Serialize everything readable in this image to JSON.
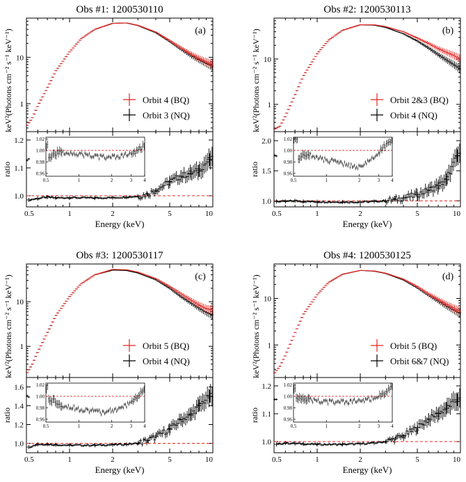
{
  "figure": {
    "energy_label": "Energy (keV)",
    "ratio_label": "ratio",
    "spectrum_label": "keV²(Photons cm⁻² s⁻¹ keV⁻¹)"
  },
  "colors": {
    "bq": "#e8231f",
    "nq": "#000000",
    "unity_line": "#e8231f"
  },
  "chart_data": [
    {
      "type": "scatter",
      "title": "Obs #1: 1200530110",
      "panel_label": "(a)",
      "xscale": "log",
      "xlim": [
        0.5,
        10
      ],
      "xticks": [
        0.5,
        1,
        2,
        5,
        10
      ],
      "top": {
        "yscale": "log",
        "ylim": [
          0.25,
          70
        ],
        "yticks": [
          1,
          10
        ],
        "legend_position": "bottom-right"
      },
      "series": [
        {
          "name": "Orbit 4 (BQ)",
          "color": "#e8231f",
          "x": [
            0.5,
            0.55,
            0.6,
            0.7,
            0.8,
            1.0,
            1.2,
            1.5,
            2.0,
            2.5,
            3.0,
            4.0,
            5.0,
            6.0,
            7.0,
            8.0,
            9.0,
            10.0
          ],
          "y": [
            0.32,
            0.5,
            0.9,
            2.2,
            5.0,
            13,
            25,
            40,
            54,
            55,
            49,
            35,
            23,
            16,
            12,
            9.5,
            8,
            7
          ]
        },
        {
          "name": "Orbit 3 (NQ)",
          "color": "#000000",
          "x": [
            0.5,
            0.55,
            0.6,
            0.7,
            0.8,
            1.0,
            1.2,
            1.5,
            2.0,
            2.5,
            3.0,
            4.0,
            5.0,
            6.0,
            7.0,
            8.0,
            9.0,
            10.0
          ],
          "y": [
            0.32,
            0.5,
            0.9,
            2.2,
            5.0,
            13,
            25,
            40,
            54,
            55,
            48.5,
            34,
            22,
            15,
            11,
            8.8,
            7.4,
            6.3
          ]
        }
      ],
      "ratio": {
        "ylim": [
          0.96,
          1.23
        ],
        "yticks": [
          1.0,
          1.1,
          1.2
        ],
        "x": [
          0.52,
          0.6,
          0.7,
          0.8,
          1.0,
          1.5,
          2.0,
          2.5,
          3.0,
          3.5,
          4.0,
          5.0,
          6.0,
          7.0,
          8.0,
          9.5
        ],
        "y": [
          0.985,
          0.99,
          0.995,
          0.992,
          0.993,
          0.992,
          0.993,
          0.995,
          0.998,
          1.005,
          1.02,
          1.05,
          1.07,
          1.08,
          1.09,
          1.13
        ],
        "inset": {
          "xlim": [
            0.5,
            4
          ],
          "ylim": [
            0.955,
            1.023
          ],
          "yticks": [
            0.96,
            0.98,
            1.0,
            1.02
          ],
          "xticks": [
            0.5,
            1,
            2,
            3,
            4
          ],
          "x": [
            0.52,
            0.6,
            0.7,
            0.8,
            1.0,
            1.3,
            1.6,
            2.0,
            2.5,
            3.0,
            3.5,
            4.0
          ],
          "y": [
            0.985,
            0.995,
            0.996,
            0.997,
            0.993,
            0.991,
            0.988,
            0.988,
            0.99,
            0.994,
            1.0,
            1.01
          ]
        }
      },
      "legend": [
        {
          "label": "Orbit 4 (BQ)",
          "color": "#e8231f"
        },
        {
          "label": "Orbit 3 (NQ)",
          "color": "#000000"
        }
      ]
    },
    {
      "type": "scatter",
      "title": "Obs #2: 1200530113",
      "panel_label": "(b)",
      "xscale": "log",
      "xlim": [
        0.5,
        10
      ],
      "xticks": [
        0.5,
        1,
        2,
        5,
        10
      ],
      "top": {
        "yscale": "log",
        "ylim": [
          0.25,
          80
        ],
        "yticks": [
          1,
          10
        ],
        "legend_position": "bottom-right"
      },
      "series": [
        {
          "name": "Orbit 2&3 (BQ)",
          "color": "#e8231f",
          "x": [
            0.5,
            0.55,
            0.6,
            0.7,
            0.8,
            1.0,
            1.2,
            1.5,
            2.0,
            2.5,
            3.0,
            4.0,
            5.0,
            6.0,
            7.0,
            8.0,
            9.0,
            10.0
          ],
          "y": [
            0.28,
            0.33,
            0.55,
            1.6,
            4.2,
            13,
            26,
            43,
            57,
            57,
            52,
            40,
            29,
            22,
            17,
            14,
            12,
            10
          ]
        },
        {
          "name": "Orbit 4 (NQ)",
          "color": "#000000",
          "x": [
            0.5,
            0.55,
            0.6,
            0.7,
            0.8,
            1.0,
            1.2,
            1.5,
            2.0,
            2.5,
            3.0,
            4.0,
            5.0,
            6.0,
            7.0,
            8.0,
            9.0,
            10.0
          ],
          "y": [
            0.28,
            0.33,
            0.55,
            1.6,
            4.2,
            13,
            26,
            43,
            57,
            56,
            50,
            36,
            25,
            17.5,
            12.5,
            9.5,
            7.5,
            6
          ]
        }
      ],
      "ratio": {
        "ylim": [
          0.9,
          2.15
        ],
        "yticks": [
          1.0,
          1.5,
          2.0
        ],
        "x": [
          0.52,
          0.6,
          0.7,
          0.8,
          1.0,
          1.5,
          2.0,
          2.5,
          3.0,
          3.5,
          4.0,
          5.0,
          6.0,
          7.0,
          8.0,
          9.5
        ],
        "y": [
          0.99,
          0.99,
          1.0,
          0.99,
          0.985,
          0.98,
          0.98,
          0.99,
          1.0,
          1.02,
          1.05,
          1.1,
          1.18,
          1.25,
          1.35,
          1.75
        ],
        "inset": {
          "xlim": [
            0.5,
            4
          ],
          "ylim": [
            0.955,
            1.023
          ],
          "yticks": [
            0.96,
            0.98,
            1.0,
            1.02
          ],
          "xticks": [
            0.5,
            1,
            2,
            3,
            4
          ],
          "x": [
            0.55,
            0.6,
            0.7,
            0.8,
            1.0,
            1.3,
            1.6,
            2.0,
            2.3,
            2.6,
            3.0,
            3.5,
            4.0
          ],
          "y": [
            0.985,
            0.99,
            0.993,
            0.988,
            0.983,
            0.978,
            0.975,
            0.97,
            0.978,
            0.985,
            0.995,
            1.01,
            1.02
          ]
        }
      },
      "legend": [
        {
          "label": "Orbit 2&3 (BQ)",
          "color": "#e8231f"
        },
        {
          "label": "Orbit 4 (NQ)",
          "color": "#000000"
        }
      ]
    },
    {
      "type": "scatter",
      "title": "Obs #3: 1200530117",
      "panel_label": "(c)",
      "xscale": "log",
      "xlim": [
        0.5,
        10
      ],
      "xticks": [
        0.5,
        1,
        2,
        5,
        10
      ],
      "top": {
        "yscale": "log",
        "ylim": [
          0.2,
          70
        ],
        "yticks": [
          1,
          10
        ],
        "legend_position": "bottom-right"
      },
      "series": [
        {
          "name": "Orbit 5 (BQ)",
          "color": "#e8231f",
          "x": [
            0.5,
            0.55,
            0.6,
            0.7,
            0.8,
            1.0,
            1.2,
            1.5,
            2.0,
            2.5,
            3.0,
            4.0,
            5.0,
            6.0,
            7.0,
            8.0,
            9.0,
            10.0
          ],
          "y": [
            0.24,
            0.4,
            0.75,
            2.0,
            4.8,
            13,
            25,
            40,
            53,
            52,
            46,
            33,
            22,
            15,
            11,
            8.5,
            7,
            6.5
          ]
        },
        {
          "name": "Orbit 4 (NQ)",
          "color": "#000000",
          "x": [
            0.5,
            0.55,
            0.6,
            0.7,
            0.8,
            1.0,
            1.2,
            1.5,
            2.0,
            2.5,
            3.0,
            4.0,
            5.0,
            6.0,
            7.0,
            8.0,
            9.0,
            10.0
          ],
          "y": [
            0.24,
            0.4,
            0.75,
            2.0,
            4.8,
            13,
            25,
            40,
            51,
            50,
            44,
            31,
            20,
            13,
            9.5,
            7.2,
            5.8,
            5
          ]
        }
      ],
      "ratio": {
        "ylim": [
          0.9,
          1.7
        ],
        "yticks": [
          1.0,
          1.2,
          1.4,
          1.6
        ],
        "x": [
          0.52,
          0.6,
          0.7,
          0.8,
          1.0,
          1.5,
          2.0,
          2.5,
          3.0,
          3.5,
          4.0,
          5.0,
          6.0,
          7.0,
          8.0,
          9.5
        ],
        "y": [
          0.96,
          0.99,
          0.99,
          0.985,
          0.98,
          0.98,
          0.985,
          0.99,
          1.0,
          1.03,
          1.07,
          1.15,
          1.25,
          1.3,
          1.4,
          1.5
        ],
        "inset": {
          "xlim": [
            0.5,
            4
          ],
          "ylim": [
            0.955,
            1.023
          ],
          "yticks": [
            0.96,
            0.98,
            1.0,
            1.02
          ],
          "xticks": [
            0.5,
            1,
            2,
            3,
            4
          ],
          "x": [
            0.52,
            0.6,
            0.7,
            0.8,
            1.0,
            1.3,
            1.6,
            2.0,
            2.5,
            3.0,
            3.5,
            4.0
          ],
          "y": [
            0.995,
            0.992,
            0.985,
            0.982,
            0.978,
            0.975,
            0.972,
            0.975,
            0.98,
            0.99,
            1.0,
            1.015
          ]
        }
      },
      "legend": [
        {
          "label": "Orbit 5 (BQ)",
          "color": "#e8231f"
        },
        {
          "label": "Orbit 4 (NQ)",
          "color": "#000000"
        }
      ]
    },
    {
      "type": "scatter",
      "title": "Obs #4: 1200530125",
      "panel_label": "(d)",
      "xscale": "log",
      "xlim": [
        0.5,
        10
      ],
      "xticks": [
        0.5,
        1,
        2,
        5,
        10
      ],
      "top": {
        "yscale": "log",
        "ylim": [
          0.2,
          55
        ],
        "yticks": [
          1,
          10
        ],
        "legend_position": "bottom-right"
      },
      "series": [
        {
          "name": "Orbit 5 (BQ)",
          "color": "#e8231f",
          "x": [
            0.5,
            0.55,
            0.6,
            0.7,
            0.8,
            1.0,
            1.2,
            1.5,
            2.0,
            2.5,
            3.0,
            4.0,
            5.0,
            6.0,
            7.0,
            8.0,
            9.0,
            10.0
          ],
          "y": [
            0.24,
            0.35,
            0.6,
            1.8,
            4.5,
            12,
            22,
            33,
            40,
            39,
            35,
            26,
            18,
            12.5,
            9.5,
            7.5,
            6.2,
            5.2
          ]
        },
        {
          "name": "Orbit 6&7 (NQ)",
          "color": "#000000",
          "x": [
            0.5,
            0.55,
            0.6,
            0.7,
            0.8,
            1.0,
            1.2,
            1.5,
            2.0,
            2.5,
            3.0,
            4.0,
            5.0,
            6.0,
            7.0,
            8.0,
            9.0,
            10.0
          ],
          "y": [
            0.24,
            0.35,
            0.6,
            1.8,
            4.5,
            12,
            22,
            33,
            40,
            38.5,
            34.5,
            25,
            17,
            11.8,
            8.8,
            6.8,
            5.6,
            4.7
          ]
        }
      ],
      "ratio": {
        "ylim": [
          0.96,
          1.23
        ],
        "yticks": [
          1.0,
          1.1,
          1.2
        ],
        "x": [
          0.52,
          0.6,
          0.7,
          0.8,
          1.0,
          1.5,
          2.0,
          2.5,
          3.0,
          3.5,
          4.0,
          5.0,
          6.0,
          7.0,
          8.0,
          9.5
        ],
        "y": [
          0.99,
          0.995,
          0.993,
          0.992,
          0.99,
          0.99,
          0.992,
          0.995,
          1.0,
          1.01,
          1.02,
          1.05,
          1.08,
          1.1,
          1.12,
          1.15
        ],
        "inset": {
          "xlim": [
            0.5,
            4
          ],
          "ylim": [
            0.955,
            1.023
          ],
          "yticks": [
            0.96,
            0.98,
            1.0,
            1.02
          ],
          "xticks": [
            0.5,
            1,
            2,
            3,
            4
          ],
          "x": [
            0.52,
            0.6,
            0.7,
            0.8,
            1.0,
            1.3,
            1.6,
            2.0,
            2.5,
            3.0,
            3.5,
            4.0
          ],
          "y": [
            1.0,
            0.997,
            0.994,
            0.992,
            0.99,
            0.99,
            0.99,
            0.992,
            0.995,
            1.0,
            1.008,
            1.015
          ]
        }
      },
      "legend": [
        {
          "label": "Orbit 5 (BQ)",
          "color": "#e8231f"
        },
        {
          "label": "Orbit 6&7 (NQ)",
          "color": "#000000"
        }
      ]
    }
  ]
}
